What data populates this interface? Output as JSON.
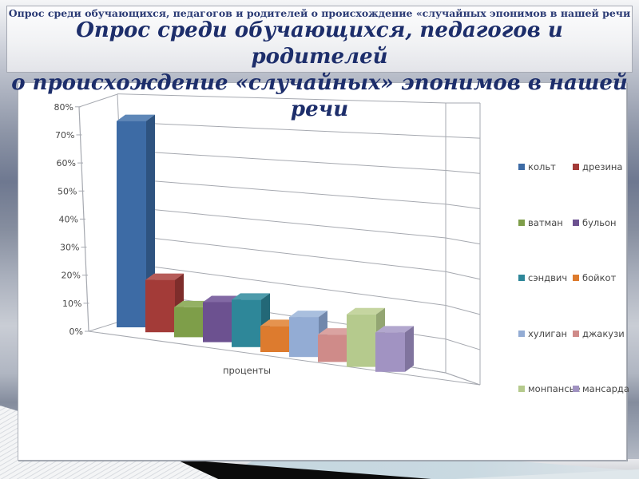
{
  "slide": {
    "top_overlay_title": "Опрос  среди обучающихся, педагогов и родителей о происхождение «случайных  эпонимов  в нашей речи",
    "title_line1": "Опрос  среди обучающихся, педагогов и родителей",
    "title_line2": "о происхождение «случайных» эпонимов  в нашей речи",
    "title_color": "#1d2e6b"
  },
  "chart_data": {
    "type": "bar",
    "projection": "3d",
    "title": "",
    "xlabel": "проценты",
    "ylabel": "",
    "ylim": [
      0,
      80
    ],
    "ytick_step": 10,
    "ytick_labels": [
      "0%",
      "10%",
      "20%",
      "30%",
      "40%",
      "50%",
      "60%",
      "70%",
      "80%"
    ],
    "grid": true,
    "legend_position": "right",
    "categories": [
      "кольт",
      "дрезина",
      "ватман",
      "бульон",
      "сэндвич",
      "бойкот",
      "хулиган",
      "джакузи",
      "монпансье",
      "мансарда"
    ],
    "values": [
      73,
      18,
      10,
      13,
      15,
      8,
      12,
      8,
      15,
      11
    ],
    "series": [
      {
        "name": "кольт",
        "value": 73,
        "front": "#3D6BA5",
        "top": "#5E87B8",
        "side": "#2E5380"
      },
      {
        "name": "дрезина",
        "value": 18,
        "front": "#A33B38",
        "top": "#B65C59",
        "side": "#7E2D2B"
      },
      {
        "name": "ватман",
        "value": 10,
        "front": "#7E9E49",
        "top": "#94B164",
        "side": "#627B39"
      },
      {
        "name": "бульон",
        "value": 13,
        "front": "#6C5190",
        "top": "#8269A4",
        "side": "#533E70"
      },
      {
        "name": "сэндвич",
        "value": 15,
        "front": "#2E8799",
        "top": "#4D9BAB",
        "side": "#236877"
      },
      {
        "name": "бойкот",
        "value": 8,
        "front": "#DD7B2E",
        "top": "#E5934F",
        "side": "#AC5F23"
      },
      {
        "name": "хулиган",
        "value": 12,
        "front": "#93ACD4",
        "top": "#A9BFDE",
        "side": "#7288AC"
      },
      {
        "name": "джакузи",
        "value": 8,
        "front": "#CF8B89",
        "top": "#DAA3A1",
        "side": "#A76F6D"
      },
      {
        "name": "монпансье",
        "value": 15,
        "front": "#B5CA8D",
        "top": "#C5D5A0",
        "side": "#93A572"
      },
      {
        "name": "мансарда",
        "value": 11,
        "front": "#A193C2",
        "top": "#B2A7CE",
        "side": "#80749E"
      }
    ],
    "colors": {
      "gridline": "#a6a9b0",
      "axis_text": "#474747",
      "deco_black": "#0b0b0b",
      "deco_blue": "#c5d7e0"
    }
  }
}
